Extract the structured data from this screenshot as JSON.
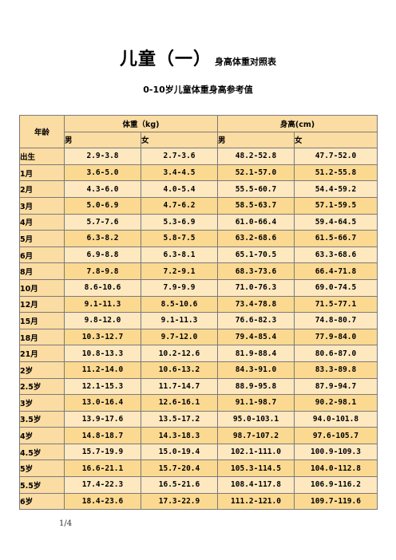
{
  "title": {
    "main": "儿童（一）",
    "sub": "身高体重对照表"
  },
  "subtitle": "0-10岁儿童体重身高参考值",
  "table": {
    "age_header": "年龄",
    "weight_header": "体重（kg)",
    "height_header": "身高(cm)",
    "sub_headers": [
      "男",
      "女",
      "男",
      "女"
    ],
    "rows": [
      [
        "出生",
        "2.9-3.8",
        "2.7-3.6",
        "48.2-52.8",
        "47.7-52.0"
      ],
      [
        "1月",
        "3.6-5.0",
        "3.4-4.5",
        "52.1-57.0",
        "51.2-55.8"
      ],
      [
        "2月",
        "4.3-6.0",
        "4.0-5.4",
        "55.5-60.7",
        "54.4-59.2"
      ],
      [
        "3月",
        "5.0-6.9",
        "4.7-6.2",
        "58.5-63.7",
        "57.1-59.5"
      ],
      [
        "4月",
        "5.7-7.6",
        "5.3-6.9",
        "61.0-66.4",
        "59.4-64.5"
      ],
      [
        "5月",
        "6.3-8.2",
        "5.8-7.5",
        "63.2-68.6",
        "61.5-66.7"
      ],
      [
        "6月",
        "6.9-8.8",
        "6.3-8.1",
        "65.1-70.5",
        "63.3-68.6"
      ],
      [
        "8月",
        "7.8-9.8",
        "7.2-9.1",
        "68.3-73.6",
        "66.4-71.8"
      ],
      [
        "10月",
        "8.6-10.6",
        "7.9-9.9",
        "71.0-76.3",
        "69.0-74.5"
      ],
      [
        "12月",
        "9.1-11.3",
        "8.5-10.6",
        "73.4-78.8",
        "71.5-77.1"
      ],
      [
        "15月",
        "9.8-12.0",
        "9.1-11.3",
        "76.6-82.3",
        "74.8-80.7"
      ],
      [
        "18月",
        "10.3-12.7",
        "9.7-12.0",
        "79.4-85.4",
        "77.9-84.0"
      ],
      [
        "21月",
        "10.8-13.3",
        "10.2-12.6",
        "81.9-88.4",
        "80.6-87.0"
      ],
      [
        "2岁",
        "11.2-14.0",
        "10.6-13.2",
        "84.3-91.0",
        "83.3-89.8"
      ],
      [
        "2.5岁",
        "12.1-15.3",
        "11.7-14.7",
        "88.9-95.8",
        "87.9-94.7"
      ],
      [
        "3岁",
        "13.0-16.4",
        "12.6-16.1",
        "91.1-98.7",
        "90.2-98.1"
      ],
      [
        "3.5岁",
        "13.9-17.6",
        "13.5-17.2",
        "95.0-103.1",
        "94.0-101.8"
      ],
      [
        "4岁",
        "14.8-18.7",
        "14.3-18.3",
        "98.7-107.2",
        "97.6-105.7"
      ],
      [
        "4.5岁",
        "15.7-19.9",
        "15.0-19.4",
        "102.1-111.0",
        "100.9-109.3"
      ],
      [
        "5岁",
        "16.6-21.1",
        "15.7-20.4",
        "105.3-114.5",
        "104.0-112.8"
      ],
      [
        "5.5岁",
        "17.4-22.3",
        "16.5-21.6",
        "108.4-117.8",
        "106.9-116.2"
      ],
      [
        "6岁",
        "18.4-23.6",
        "17.3-22.9",
        "111.2-121.0",
        "109.7-119.6"
      ]
    ]
  },
  "page_number": "1/4"
}
